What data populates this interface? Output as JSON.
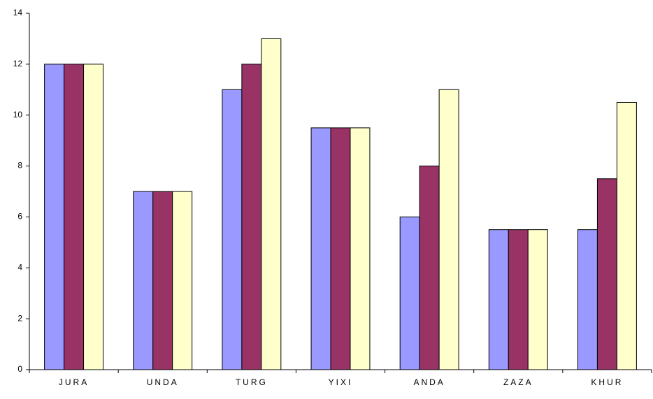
{
  "chart_data": {
    "type": "bar",
    "categories": [
      "JURA",
      "UNDA",
      "TURG",
      "YIXI",
      "ANDA",
      "ZAZA",
      "KHUR"
    ],
    "series": [
      {
        "color": "#9999ff",
        "values": [
          12,
          7,
          11,
          9.5,
          6,
          5.5,
          5.5
        ]
      },
      {
        "color": "#993366",
        "values": [
          12,
          7,
          12,
          9.5,
          8,
          5.5,
          7.5
        ]
      },
      {
        "color": "#ffffcc",
        "values": [
          12,
          7,
          13,
          9.5,
          11,
          5.5,
          10.5
        ]
      }
    ],
    "ylim": [
      0,
      14
    ],
    "yticks": [
      0,
      2,
      4,
      6,
      8,
      10,
      12,
      14
    ],
    "grid": false
  }
}
